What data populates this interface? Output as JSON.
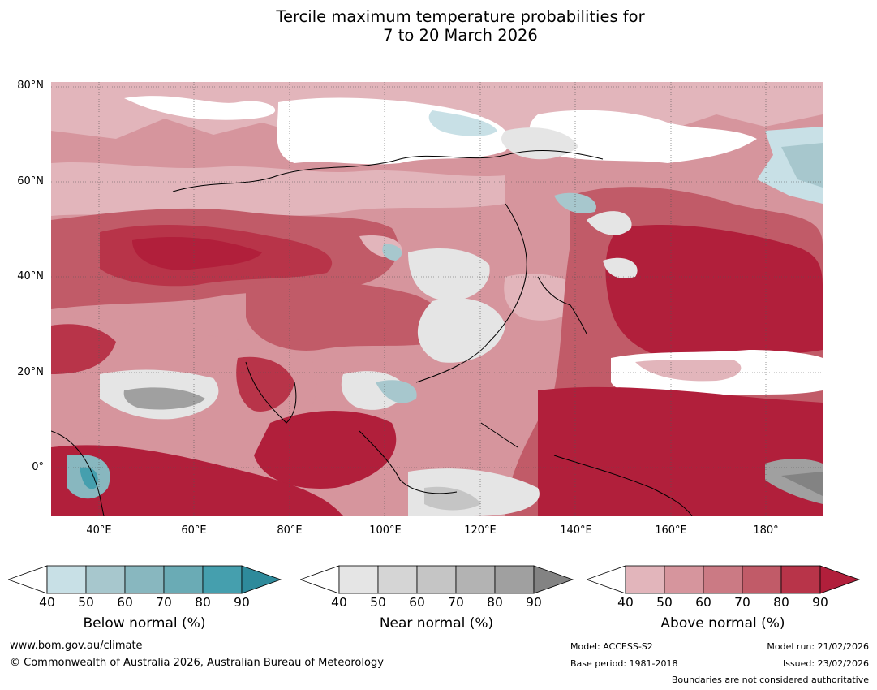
{
  "title_line1": "Tercile maximum temperature probabilities for",
  "title_line2": "7 to 20 March 2026",
  "map": {
    "lat_labels": [
      "80°N",
      "60°N",
      "40°N",
      "20°N",
      "0°"
    ],
    "lon_labels": [
      "40°E",
      "60°E",
      "80°E",
      "100°E",
      "120°E",
      "140°E",
      "160°E",
      "180°"
    ],
    "legend_ticks": [
      "40",
      "50",
      "60",
      "70",
      "80",
      "90"
    ],
    "legends": [
      {
        "label": "Below normal (%)",
        "colors": [
          "#c8e0e6",
          "#a7c7cd",
          "#88b7bf",
          "#6aabb5",
          "#459fae",
          "#2e8a9b"
        ]
      },
      {
        "label": "Near normal (%)",
        "colors": [
          "#e5e5e5",
          "#d5d5d5",
          "#c5c5c5",
          "#b3b3b3",
          "#a0a0a0",
          "#838383"
        ]
      },
      {
        "label": "Above normal (%)",
        "colors": [
          "#e2b5bb",
          "#d6959d",
          "#cb7a84",
          "#c15b68",
          "#b83449",
          "#b11f3b"
        ]
      }
    ]
  },
  "footer": {
    "website": "www.bom.gov.au/climate",
    "copyright": "© Commonwealth of Australia 2026, Australian Bureau of Meteorology",
    "model": "Model: ACCESS-S2",
    "base_period": "Base period: 1981-2018",
    "model_run": "Model run: 21/02/2026",
    "issued": "Issued: 23/02/2026",
    "disclaimer": "Boundaries are not considered authoritative"
  }
}
